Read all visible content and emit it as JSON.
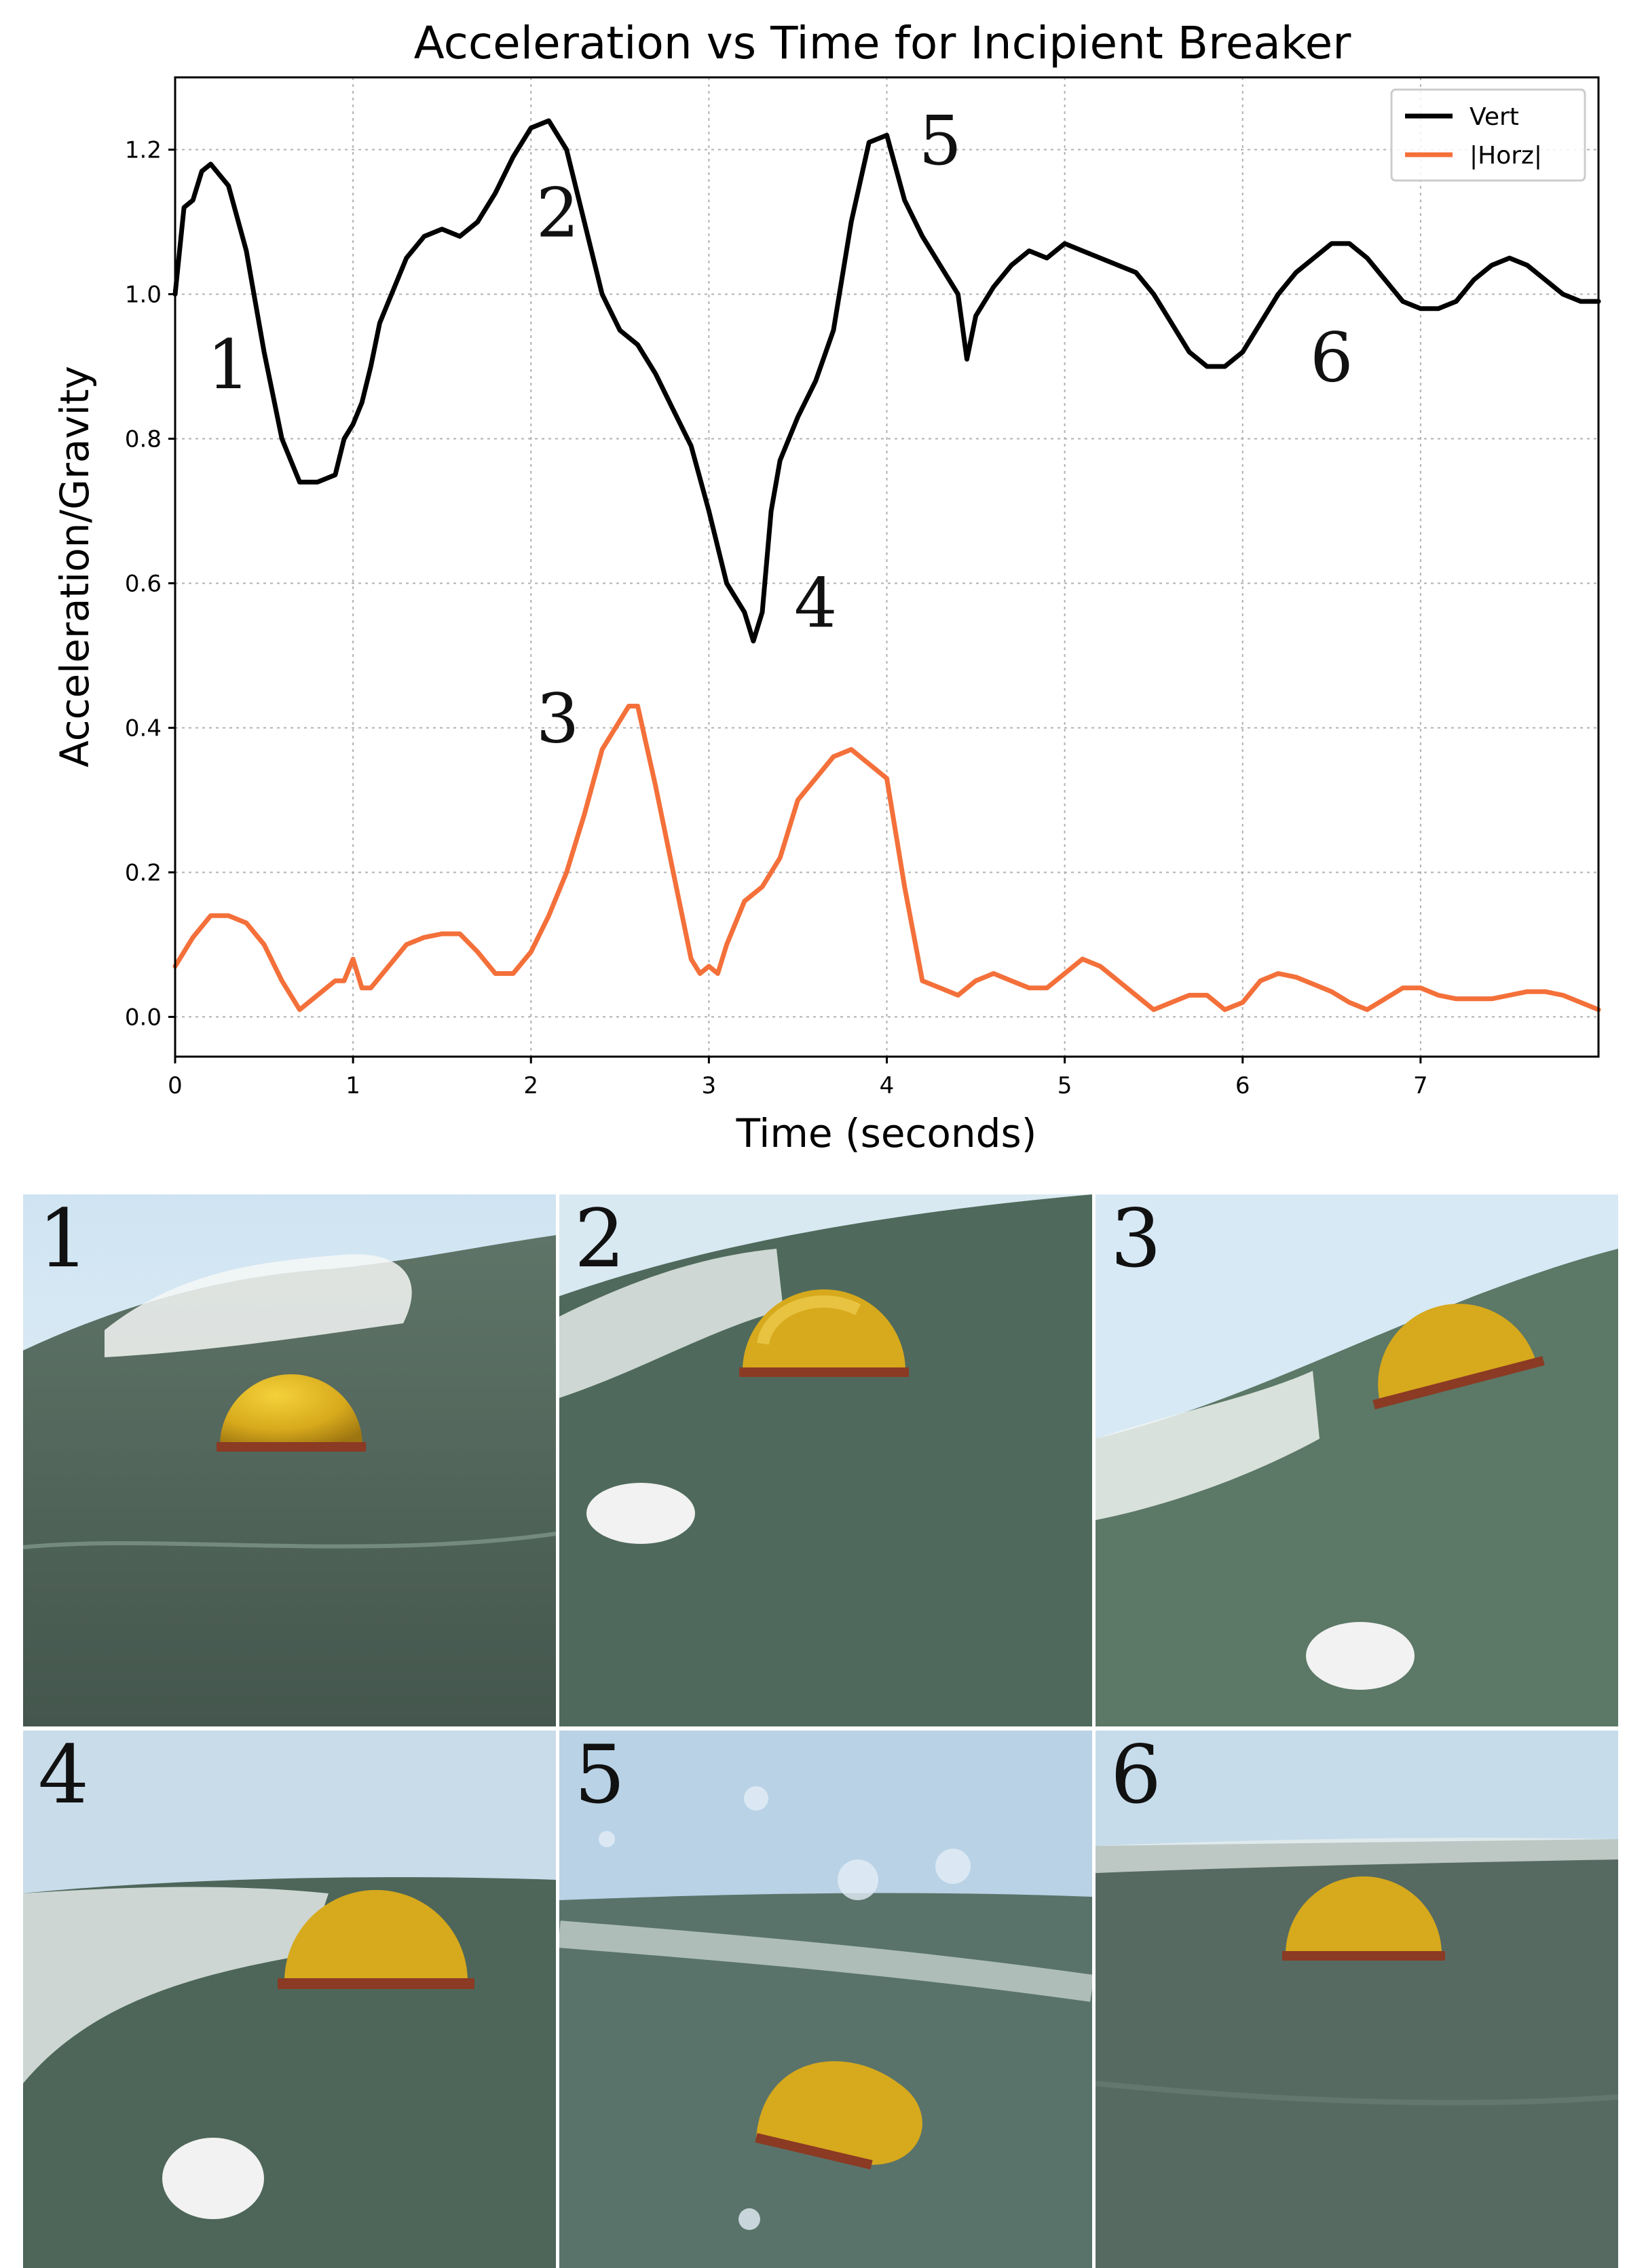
{
  "chart_data": {
    "type": "line",
    "title": "Acceleration vs Time for Incipient Breaker",
    "xlabel": "Time (seconds)",
    "ylabel": "Acceleration/Gravity",
    "xlim": [
      0,
      8
    ],
    "ylim": [
      -0.055,
      1.3
    ],
    "xticks": [
      0,
      1,
      2,
      3,
      4,
      5,
      6,
      7
    ],
    "xtick_labels": [
      "0",
      "1",
      "2",
      "3",
      "4",
      "5",
      "6",
      "7"
    ],
    "yticks": [
      0.0,
      0.2,
      0.4,
      0.6,
      0.8,
      1.0,
      1.2
    ],
    "ytick_labels": [
      "0.0",
      "0.2",
      "0.4",
      "0.6",
      "0.8",
      "1.0",
      "1.2"
    ],
    "grid": true,
    "legend_position": "top-right",
    "series": [
      {
        "name": "Vert",
        "color": "#000000",
        "x": [
          0,
          0.05,
          0.1,
          0.15,
          0.2,
          0.3,
          0.4,
          0.5,
          0.6,
          0.7,
          0.8,
          0.9,
          0.95,
          1.0,
          1.05,
          1.1,
          1.15,
          1.2,
          1.3,
          1.4,
          1.5,
          1.6,
          1.7,
          1.8,
          1.9,
          2.0,
          2.1,
          2.2,
          2.3,
          2.4,
          2.5,
          2.6,
          2.7,
          2.8,
          2.9,
          3.0,
          3.1,
          3.2,
          3.25,
          3.3,
          3.35,
          3.4,
          3.5,
          3.6,
          3.7,
          3.8,
          3.9,
          4.0,
          4.1,
          4.2,
          4.3,
          4.4,
          4.45,
          4.5,
          4.55,
          4.6,
          4.7,
          4.8,
          4.9,
          5.0,
          5.1,
          5.2,
          5.3,
          5.4,
          5.5,
          5.6,
          5.7,
          5.8,
          5.9,
          6.0,
          6.1,
          6.2,
          6.3,
          6.4,
          6.5,
          6.6,
          6.7,
          6.8,
          6.9,
          7.0,
          7.1,
          7.2,
          7.3,
          7.4,
          7.5,
          7.6,
          7.7,
          7.8,
          7.9,
          8.0
        ],
        "values": [
          1.0,
          1.12,
          1.13,
          1.17,
          1.18,
          1.15,
          1.06,
          0.92,
          0.8,
          0.74,
          0.74,
          0.75,
          0.8,
          0.82,
          0.85,
          0.9,
          0.96,
          0.99,
          1.05,
          1.08,
          1.09,
          1.08,
          1.1,
          1.14,
          1.19,
          1.23,
          1.24,
          1.2,
          1.1,
          1.0,
          0.95,
          0.93,
          0.89,
          0.84,
          0.79,
          0.7,
          0.6,
          0.56,
          0.52,
          0.56,
          0.7,
          0.77,
          0.83,
          0.88,
          0.95,
          1.1,
          1.21,
          1.22,
          1.13,
          1.08,
          1.04,
          1.0,
          0.91,
          0.97,
          0.99,
          1.01,
          1.04,
          1.06,
          1.05,
          1.07,
          1.06,
          1.05,
          1.04,
          1.03,
          1.0,
          0.96,
          0.92,
          0.9,
          0.9,
          0.92,
          0.96,
          1.0,
          1.03,
          1.05,
          1.07,
          1.07,
          1.05,
          1.02,
          0.99,
          0.98,
          0.98,
          0.99,
          1.02,
          1.04,
          1.05,
          1.04,
          1.02,
          1.0,
          0.99,
          0.99
        ]
      },
      {
        "name": "|Horz|",
        "color": "#f4703a",
        "x": [
          0,
          0.1,
          0.2,
          0.3,
          0.4,
          0.5,
          0.6,
          0.7,
          0.8,
          0.9,
          0.95,
          1.0,
          1.05,
          1.1,
          1.2,
          1.3,
          1.4,
          1.5,
          1.6,
          1.7,
          1.8,
          1.9,
          2.0,
          2.1,
          2.2,
          2.3,
          2.4,
          2.5,
          2.55,
          2.6,
          2.7,
          2.8,
          2.9,
          2.95,
          3.0,
          3.05,
          3.1,
          3.2,
          3.3,
          3.4,
          3.5,
          3.6,
          3.7,
          3.8,
          3.9,
          4.0,
          4.1,
          4.2,
          4.3,
          4.4,
          4.5,
          4.6,
          4.7,
          4.8,
          4.9,
          5.0,
          5.1,
          5.2,
          5.3,
          5.4,
          5.5,
          5.6,
          5.7,
          5.8,
          5.9,
          6.0,
          6.1,
          6.2,
          6.3,
          6.4,
          6.5,
          6.6,
          6.7,
          6.8,
          6.9,
          7.0,
          7.1,
          7.2,
          7.3,
          7.4,
          7.5,
          7.6,
          7.7,
          7.8,
          7.9,
          8.0
        ],
        "values": [
          0.07,
          0.11,
          0.14,
          0.14,
          0.13,
          0.1,
          0.05,
          0.01,
          0.03,
          0.05,
          0.05,
          0.08,
          0.04,
          0.04,
          0.07,
          0.1,
          0.11,
          0.115,
          0.115,
          0.09,
          0.06,
          0.06,
          0.09,
          0.14,
          0.2,
          0.28,
          0.37,
          0.41,
          0.43,
          0.43,
          0.32,
          0.2,
          0.08,
          0.06,
          0.07,
          0.06,
          0.1,
          0.16,
          0.18,
          0.22,
          0.3,
          0.33,
          0.36,
          0.37,
          0.35,
          0.33,
          0.18,
          0.05,
          0.04,
          0.03,
          0.05,
          0.06,
          0.05,
          0.04,
          0.04,
          0.06,
          0.08,
          0.07,
          0.05,
          0.03,
          0.01,
          0.02,
          0.03,
          0.03,
          0.01,
          0.02,
          0.05,
          0.06,
          0.055,
          0.045,
          0.035,
          0.02,
          0.01,
          0.025,
          0.04,
          0.04,
          0.03,
          0.025,
          0.025,
          0.025,
          0.03,
          0.035,
          0.035,
          0.03,
          0.02,
          0.01
        ]
      }
    ],
    "annotations": [
      {
        "text": "1",
        "x": 0.3,
        "y": 0.87
      },
      {
        "text": "2",
        "x": 2.15,
        "y": 1.08
      },
      {
        "text": "3",
        "x": 2.15,
        "y": 0.38
      },
      {
        "text": "4",
        "x": 3.6,
        "y": 0.54
      },
      {
        "text": "5",
        "x": 4.3,
        "y": 1.18
      },
      {
        "text": "6",
        "x": 6.5,
        "y": 0.88
      }
    ]
  },
  "photos": [
    {
      "label": "1",
      "scene": "buoy-calm-water"
    },
    {
      "label": "2",
      "scene": "buoy-wave-rising"
    },
    {
      "label": "3",
      "scene": "buoy-wave-face"
    },
    {
      "label": "4",
      "scene": "buoy-trough"
    },
    {
      "label": "5",
      "scene": "buoy-splash"
    },
    {
      "label": "6",
      "scene": "buoy-settled"
    }
  ]
}
